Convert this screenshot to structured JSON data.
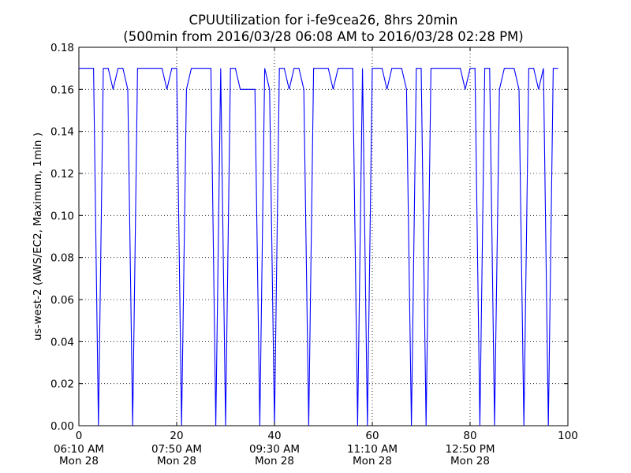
{
  "chart_data": {
    "type": "line",
    "title": "CPUUtilization for i-fe9cea26, 8hrs 20min",
    "subtitle": "(500min from 2016/03/28 06:08 AM to 2016/03/28 02:28 PM)",
    "xlabel": "",
    "ylabel": "us-west-2 (AWS/EC2, Maximum, 1min )",
    "xlim": [
      0,
      100
    ],
    "ylim": [
      0,
      0.18
    ],
    "grid": true,
    "colors": {
      "line": "#0000ff",
      "grid": "#000000",
      "axes": "#000000"
    },
    "x_ticks": [
      {
        "value": 0,
        "label": "0",
        "time": "06:10 AM",
        "day": "Mon 28"
      },
      {
        "value": 20,
        "label": "20",
        "time": "07:50 AM",
        "day": "Mon 28"
      },
      {
        "value": 40,
        "label": "40",
        "time": "09:30 AM",
        "day": "Mon 28"
      },
      {
        "value": 60,
        "label": "60",
        "time": "11:10 AM",
        "day": "Mon 28"
      },
      {
        "value": 80,
        "label": "80",
        "time": "12:50 PM",
        "day": "Mon 28"
      },
      {
        "value": 100,
        "label": "100",
        "time": "",
        "day": ""
      }
    ],
    "y_ticks": [
      {
        "value": 0.0,
        "label": "0.00"
      },
      {
        "value": 0.02,
        "label": "0.02"
      },
      {
        "value": 0.04,
        "label": "0.04"
      },
      {
        "value": 0.06,
        "label": "0.06"
      },
      {
        "value": 0.08,
        "label": "0.08"
      },
      {
        "value": 0.1,
        "label": "0.10"
      },
      {
        "value": 0.12,
        "label": "0.12"
      },
      {
        "value": 0.14,
        "label": "0.14"
      },
      {
        "value": 0.16,
        "label": "0.16"
      },
      {
        "value": 0.18,
        "label": "0.18"
      }
    ],
    "series": [
      {
        "x": [
          0,
          1,
          2,
          3,
          4,
          5,
          6,
          7,
          8,
          9,
          10,
          11,
          12,
          13,
          14,
          15,
          16,
          17,
          18,
          19,
          20,
          21,
          22,
          23,
          24,
          25,
          26,
          27,
          28,
          29,
          30,
          31,
          32,
          33,
          34,
          35,
          36,
          37,
          38,
          39,
          40,
          41,
          42,
          43,
          44,
          45,
          46,
          47,
          48,
          49,
          50,
          51,
          52,
          53,
          54,
          55,
          56,
          57,
          58,
          59,
          60,
          61,
          62,
          63,
          64,
          65,
          66,
          67,
          68,
          69,
          70,
          71,
          72,
          73,
          74,
          75,
          76,
          77,
          78,
          79,
          80,
          81,
          82,
          83,
          84,
          85,
          86,
          87,
          88,
          89,
          90,
          91,
          92,
          93,
          94,
          95,
          96,
          97,
          98
        ],
        "y": [
          0.17,
          0.17,
          0.17,
          0.17,
          0,
          0.17,
          0.17,
          0.16,
          0.17,
          0.17,
          0.16,
          0,
          0.17,
          0.17,
          0.17,
          0.17,
          0.17,
          0.17,
          0.16,
          0.17,
          0.17,
          0,
          0.16,
          0.17,
          0.17,
          0.17,
          0.17,
          0.17,
          0,
          0.17,
          0,
          0.17,
          0.17,
          0.16,
          0.16,
          0.16,
          0.16,
          0,
          0.17,
          0.16,
          0,
          0.17,
          0.17,
          0.16,
          0.17,
          0.17,
          0.16,
          0,
          0.17,
          0.17,
          0.17,
          0.17,
          0.16,
          0.17,
          0.17,
          0.17,
          0.17,
          0,
          0.17,
          0,
          0.17,
          0.17,
          0.17,
          0.16,
          0.17,
          0.17,
          0.17,
          0.16,
          0,
          0.17,
          0.17,
          0,
          0.17,
          0.17,
          0.17,
          0.17,
          0.17,
          0.17,
          0.17,
          0.16,
          0.17,
          0.17,
          0,
          0.17,
          0.17,
          0,
          0.16,
          0.17,
          0.17,
          0.17,
          0.16,
          0,
          0.17,
          0.17,
          0.16,
          0.17,
          0,
          0.17,
          0.17
        ]
      }
    ]
  }
}
